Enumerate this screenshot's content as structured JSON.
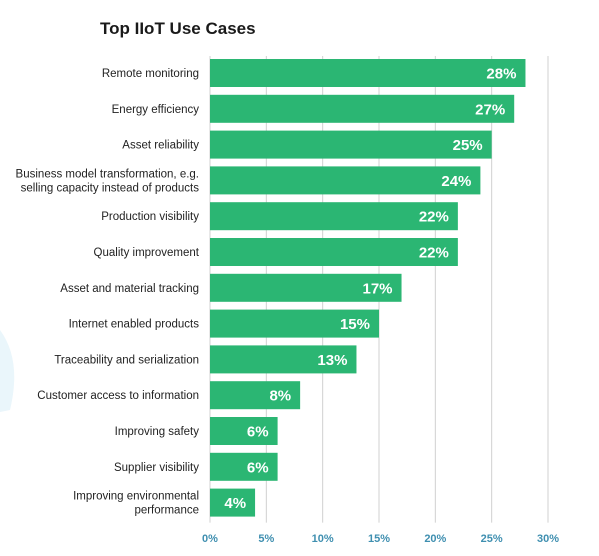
{
  "colors": {
    "bar": "#2bb673",
    "axis_text": "#3f8fb0",
    "gridline": "#d0d0d0",
    "background_swirl": "#eaf6fb"
  },
  "chart_data": {
    "type": "bar",
    "orientation": "horizontal",
    "title": "Top IIoT Use Cases",
    "categories": [
      "Remote monitoring",
      "Energy efficiency",
      "Asset reliability",
      "Business model transformation, e.g. selling capacity instead of products",
      "Production visibility",
      "Quality improvement",
      "Asset and material tracking",
      "Internet enabled products",
      "Traceability and serialization",
      "Customer access to information",
      "Improving safety",
      "Supplier visibility",
      "Improving environmental performance"
    ],
    "category_lines": [
      [
        "Remote monitoring"
      ],
      [
        "Energy efficiency"
      ],
      [
        "Asset reliability"
      ],
      [
        "Business model transformation, e.g.",
        "selling capacity instead of products"
      ],
      [
        "Production visibility"
      ],
      [
        "Quality improvement"
      ],
      [
        "Asset and material tracking"
      ],
      [
        "Internet enabled products"
      ],
      [
        "Traceability and serialization"
      ],
      [
        "Customer access to information"
      ],
      [
        "Improving safety"
      ],
      [
        "Supplier visibility"
      ],
      [
        "Improving environmental",
        "performance"
      ]
    ],
    "values": [
      28,
      27,
      25,
      24,
      22,
      22,
      17,
      15,
      13,
      8,
      6,
      6,
      4
    ],
    "value_labels": [
      "28%",
      "27%",
      "25%",
      "24%",
      "22%",
      "22%",
      "17%",
      "15%",
      "13%",
      "8%",
      "6%",
      "6%",
      "4%"
    ],
    "x_ticks": [
      0,
      5,
      10,
      15,
      20,
      25,
      30
    ],
    "x_tick_labels": [
      "0%",
      "5%",
      "10%",
      "15%",
      "20%",
      "25%",
      "30%"
    ],
    "xlim": [
      0,
      30
    ],
    "xlabel": "",
    "ylabel": "",
    "grid": true,
    "legend": "none"
  }
}
